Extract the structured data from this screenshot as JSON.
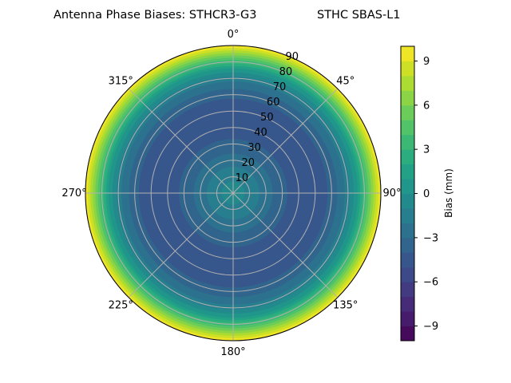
{
  "chart_data": {
    "type": "polar-contour",
    "title_left": "Antenna Phase Biases: STHCR3-G3",
    "title_right": "STHC SBAS-L1",
    "angular_tick_labels": [
      "0°",
      "45°",
      "90°",
      "135°",
      "180°",
      "225°",
      "270°",
      "315°"
    ],
    "angular_ticks_deg": [
      0,
      45,
      90,
      135,
      180,
      225,
      270,
      315
    ],
    "radial_tick_labels": [
      "10",
      "20",
      "30",
      "40",
      "50",
      "60",
      "70",
      "80",
      "90"
    ],
    "radial_ticks": [
      10,
      20,
      30,
      40,
      50,
      60,
      70,
      80,
      90
    ],
    "radial_range": [
      0,
      90
    ],
    "grid": true,
    "colormap": "viridis",
    "colorbar": {
      "label": "Bias (mm)",
      "range": [
        -10,
        10
      ],
      "level_step": 1,
      "tick_values": [
        -9,
        -6,
        -3,
        0,
        3,
        6,
        9
      ],
      "tick_labels": [
        "−9",
        "−6",
        "−3",
        "0",
        "3",
        "6",
        "9"
      ],
      "placement": "right"
    },
    "profile": {
      "zenith_deg": [
        0,
        10,
        20,
        30,
        40,
        50,
        60,
        70,
        75,
        80,
        85,
        90
      ],
      "bias_mm": [
        -0.5,
        -1.2,
        -2.5,
        -3.8,
        -4.5,
        -4.6,
        -3.8,
        -1.5,
        0.5,
        3.5,
        6.5,
        10
      ]
    }
  }
}
